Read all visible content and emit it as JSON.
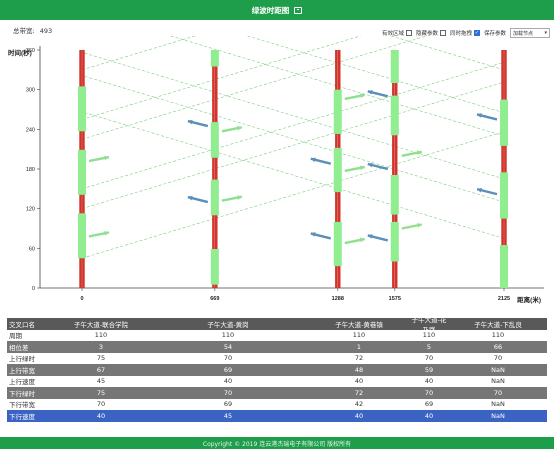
{
  "header": {
    "title": "绿波时距图",
    "fullscreen_icon": "fullscreen-icon"
  },
  "summary": {
    "label": "总带宽:",
    "value": "493"
  },
  "options": {
    "valid_area": "有效区域",
    "hide_params": "隐藏参数",
    "sync_drag": "同时拖拽",
    "save_params": "保存参数",
    "load_placeholder": "加载节点"
  },
  "chart_data": {
    "type": "time-distance",
    "ylabel": "时间(秒)",
    "xlabel": "距离(米)",
    "ylim": [
      0,
      360
    ],
    "y_ticks": [
      0,
      60,
      120,
      180,
      240,
      300,
      360
    ],
    "x": [
      0,
      669,
      1288,
      1575,
      2125
    ],
    "x_tick_labels": [
      "0",
      "669",
      "1288",
      "1575",
      "2125"
    ],
    "colors": {
      "green": "#90ee90",
      "red": "#d0342c",
      "band": "#7ccd7c",
      "arrow_up": "#8fe08f",
      "arrow_down": "#5b8fb8"
    },
    "intersections": [
      {
        "x": 0,
        "green": [
          [
            45,
            113
          ],
          [
            141,
            209
          ],
          [
            237,
            305
          ]
        ]
      },
      {
        "x": 669,
        "green": [
          [
            5,
            59
          ],
          [
            110,
            164
          ],
          [
            197,
            251
          ],
          [
            335,
            360
          ]
        ]
      },
      {
        "x": 1288,
        "green": [
          [
            33,
            100
          ],
          [
            145,
            212
          ],
          [
            233,
            300
          ]
        ]
      },
      {
        "x": 1575,
        "green": [
          [
            40,
            100
          ],
          [
            111,
            171
          ],
          [
            231,
            291
          ],
          [
            310,
            360
          ]
        ]
      },
      {
        "x": 2125,
        "green": [
          [
            -5,
            65
          ],
          [
            105,
            175
          ],
          [
            215,
            285
          ]
        ]
      }
    ],
    "up_bands": [
      {
        "x0": 0,
        "t0": 45,
        "t1": 120
      },
      {
        "x0": 0,
        "t0": 150,
        "t1": 225
      },
      {
        "x0": 0,
        "t0": 255,
        "t1": 330
      }
    ],
    "down_bands": [
      {
        "x0": 0,
        "t0": 165,
        "t1": 230
      },
      {
        "x0": 0,
        "t0": 265,
        "t1": 330
      },
      {
        "x0": 0,
        "t0": 75,
        "t1": 130
      }
    ]
  },
  "table": {
    "headers": [
      "交叉口名",
      "子午大道-联合学院",
      "子午大道-黄岗",
      "子午大道-黄巷镇",
      "子午大道-花乃路",
      "子午大道-下乱良"
    ],
    "rows": [
      {
        "label": "周期",
        "style": "light",
        "values": [
          "110",
          "110",
          "110",
          "110",
          "110"
        ]
      },
      {
        "label": "相位差",
        "style": "dark",
        "values": [
          "3",
          "54",
          "1",
          "5",
          "66"
        ]
      },
      {
        "label": "上行绿时",
        "style": "light",
        "values": [
          "75",
          "70",
          "72",
          "70",
          "70"
        ]
      },
      {
        "label": "上行带宽",
        "style": "dark",
        "values": [
          "67",
          "69",
          "48",
          "59",
          "NaN"
        ]
      },
      {
        "label": "上行速度",
        "style": "light",
        "values": [
          "45",
          "40",
          "40",
          "40",
          "NaN"
        ]
      },
      {
        "label": "下行绿时",
        "style": "dark",
        "values": [
          "75",
          "70",
          "72",
          "70",
          "70"
        ]
      },
      {
        "label": "下行带宽",
        "style": "light",
        "values": [
          "70",
          "69",
          "42",
          "69",
          "NaN"
        ]
      },
      {
        "label": "下行速度",
        "style": "blue",
        "values": [
          "40",
          "45",
          "40",
          "40",
          "NaN"
        ]
      }
    ]
  },
  "footer": {
    "copyright": "Copyright © 2019 连云港杰瑞电子有限公司 版权所有"
  }
}
